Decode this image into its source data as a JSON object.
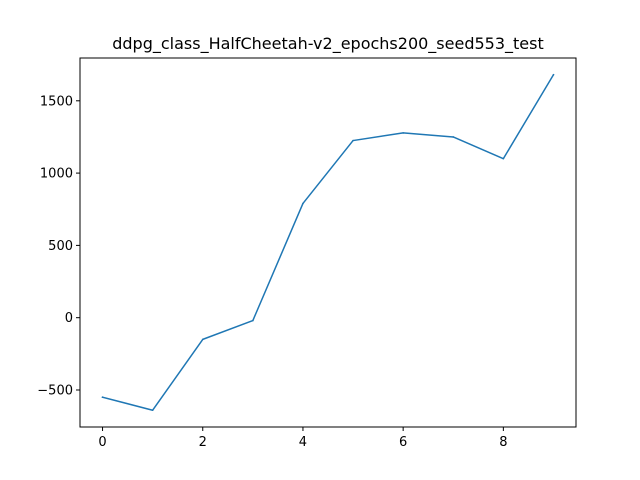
{
  "chart_data": {
    "type": "line",
    "title": "ddpg_class_HalfCheetah-v2_epochs200_seed553_test",
    "xlabel": "",
    "ylabel": "",
    "x": [
      0,
      1,
      2,
      3,
      4,
      5,
      6,
      7,
      8,
      9
    ],
    "series": [
      {
        "values": [
          -550,
          -640,
          -150,
          -20,
          790,
          1225,
          1278,
          1250,
          1100,
          1680
        ]
      }
    ],
    "xlim": [
      -0.45,
      9.45
    ],
    "ylim": [
      -756,
      1796
    ],
    "xticks": [
      0,
      2,
      4,
      6,
      8
    ],
    "xtick_labels": [
      "0",
      "2",
      "4",
      "6",
      "8"
    ],
    "yticks": [
      -500,
      0,
      500,
      1000,
      1500
    ],
    "ytick_labels": [
      "−500",
      "0",
      "500",
      "1000",
      "1500"
    ],
    "grid": false,
    "legend": "none",
    "colors": {
      "line": "#1f77b4",
      "axes": "#000000",
      "background": "#ffffff"
    }
  }
}
